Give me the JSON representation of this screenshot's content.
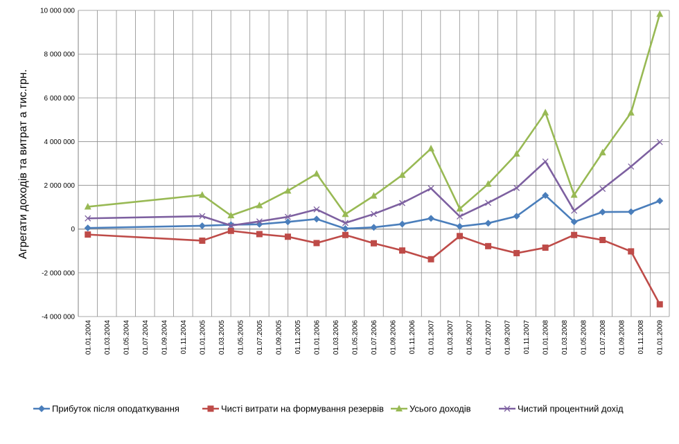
{
  "chart_data": {
    "type": "line",
    "ylabel": "Агрегати доходів та витрат а тис.грн.",
    "ylim": [
      -4000000,
      10000000
    ],
    "y_ticks": [
      -4000000,
      -2000000,
      0,
      2000000,
      4000000,
      6000000,
      8000000,
      10000000
    ],
    "y_tick_labels": [
      "-4 000 000",
      "-2 000 000",
      "0",
      "2 000 000",
      "4 000 000",
      "6 000 000",
      "8 000 000",
      "10 000 000"
    ],
    "x_tick_labels": [
      "01.01.2004",
      "01.03.2004",
      "01.05.2004",
      "01.07.2004",
      "01.09.2004",
      "01.11.2004",
      "01.01.2005",
      "01.03.2005",
      "01.05.2005",
      "01.07.2005",
      "01.09.2005",
      "01.11.2005",
      "01.01.2006",
      "01.03.2006",
      "01.05.2006",
      "01.07.2006",
      "01.09.2006",
      "01.11.2006",
      "01.01.2007",
      "01.03.2007",
      "01.05.2007",
      "01.07.2007",
      "01.09.2007",
      "01.11.2007",
      "01.01.2008",
      "01.03.2008",
      "01.05.2008",
      "01.07.2008",
      "01.09.2008",
      "01.11.2008",
      "01.01.2009"
    ],
    "x": [
      "01.01.2004",
      "01.01.2005",
      "01.04.2005",
      "01.07.2005",
      "01.10.2005",
      "01.01.2006",
      "01.04.2006",
      "01.07.2006",
      "01.10.2006",
      "01.01.2007",
      "01.04.2007",
      "01.07.2007",
      "01.10.2007",
      "01.01.2008",
      "01.04.2008",
      "01.07.2008",
      "01.10.2008",
      "01.01.2009"
    ],
    "grid": true,
    "legend_position": "bottom",
    "series": [
      {
        "name": "Прибуток після оподаткування",
        "color": "#4a7ebb",
        "marker": "diamond",
        "values": [
          50000,
          150000,
          200000,
          220000,
          330000,
          460000,
          20000,
          80000,
          230000,
          490000,
          120000,
          270000,
          590000,
          1540000,
          330000,
          780000,
          790000,
          1290000
        ]
      },
      {
        "name": "Чисті витрати на формування резервів",
        "color": "#be4b48",
        "marker": "square",
        "values": [
          -250000,
          -530000,
          -80000,
          -230000,
          -350000,
          -640000,
          -270000,
          -650000,
          -980000,
          -1380000,
          -320000,
          -780000,
          -1100000,
          -850000,
          -270000,
          -500000,
          -1020000,
          -3440000
        ]
      },
      {
        "name": "Усього доходів",
        "color": "#98b954",
        "marker": "triangle",
        "values": [
          1020000,
          1560000,
          620000,
          1080000,
          1750000,
          2530000,
          680000,
          1520000,
          2470000,
          3680000,
          930000,
          2060000,
          3440000,
          5330000,
          1560000,
          3500000,
          5320000,
          9830000
        ]
      },
      {
        "name": "Чистий процентний дохід",
        "color": "#7d60a0",
        "marker": "x",
        "values": [
          490000,
          590000,
          160000,
          350000,
          560000,
          900000,
          280000,
          690000,
          1190000,
          1860000,
          580000,
          1200000,
          1880000,
          3090000,
          840000,
          1840000,
          2860000,
          3980000
        ]
      }
    ]
  }
}
